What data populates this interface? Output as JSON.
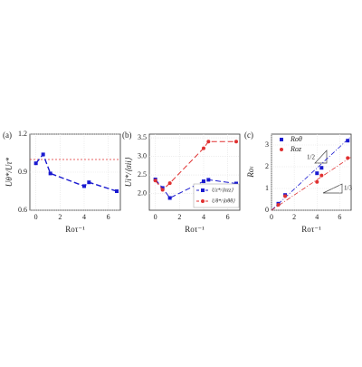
{
  "chart_data": [
    {
      "type": "line",
      "panel_label": "(a)",
      "ylabel": "Uθ*/Uτ*",
      "xlabel": "Roτ⁻¹",
      "xlim": [
        -0.5,
        7
      ],
      "ylim": [
        0.6,
        1.2
      ],
      "xticks": [
        0,
        2,
        4,
        6
      ],
      "yticks": [
        0.6,
        0.9,
        1.2
      ],
      "hline": {
        "value": 1.0,
        "color": "#e03030"
      },
      "series": [
        {
          "color": "#1a1ad0",
          "marker": "square",
          "dash": "6,3",
          "x": [
            0,
            0.6,
            1.2,
            4,
            4.4,
            6.7
          ],
          "values": [
            0.97,
            1.04,
            0.89,
            0.79,
            0.82,
            0.75
          ]
        }
      ]
    },
    {
      "type": "line",
      "panel_label": "(b)",
      "ylabel": "Ui*/⟨σii⟩",
      "xlabel": "Roτ⁻¹",
      "xlim": [
        -0.5,
        7
      ],
      "ylim": [
        1.55,
        3.6
      ],
      "xticks": [
        0,
        2,
        4,
        6
      ],
      "yticks": [
        {
          "value": 2,
          "label": "2.0"
        },
        2.5,
        {
          "value": 3,
          "label": "3.0"
        },
        3.5
      ],
      "legend": "lower right",
      "series": [
        {
          "name": "Uz*/⟨σzz⟩",
          "color": "#1a1ad0",
          "marker": "square",
          "dash": "6,3",
          "x": [
            0,
            0.6,
            1.2,
            4,
            4.4,
            6.7
          ],
          "values": [
            2.38,
            2.15,
            1.88,
            2.33,
            2.37,
            2.27
          ]
        },
        {
          "name": "Uθ*/⟨σθθ⟩",
          "color": "#e03030",
          "marker": "circle",
          "dash": "6,3",
          "x": [
            0,
            0.6,
            1.2,
            4,
            4.4,
            6.7
          ],
          "values": [
            2.35,
            2.1,
            2.28,
            3.22,
            3.4,
            3.4
          ]
        }
      ]
    },
    {
      "type": "scatter",
      "panel_label": "(c)",
      "ylabel": "Roₗ",
      "xlabel": "Roτ⁻¹",
      "xlim": [
        0,
        7
      ],
      "ylim": [
        0,
        3.5
      ],
      "xticks": [
        0,
        2,
        4,
        6
      ],
      "yticks": [
        0,
        1,
        2,
        3
      ],
      "legend": "upper left",
      "annotations": [
        "1/2",
        "1/3"
      ],
      "series": [
        {
          "name": "Roθ",
          "color": "#1a1ad0",
          "marker": "square",
          "x": [
            0.6,
            1.2,
            4,
            4.4,
            6.7
          ],
          "values": [
            0.3,
            0.7,
            1.7,
            1.95,
            3.2
          ]
        },
        {
          "name": "Roz",
          "color": "#e03030",
          "marker": "circle",
          "x": [
            0.6,
            1.2,
            4,
            4.4,
            6.7
          ],
          "values": [
            0.25,
            0.65,
            1.3,
            1.6,
            2.4
          ]
        }
      ],
      "fits": [
        {
          "color": "#1a1ad0",
          "x": [
            0,
            7
          ],
          "values": [
            0,
            3.4
          ]
        },
        {
          "color": "#e03030",
          "x": [
            0,
            7
          ],
          "values": [
            0,
            2.45
          ]
        }
      ]
    }
  ]
}
